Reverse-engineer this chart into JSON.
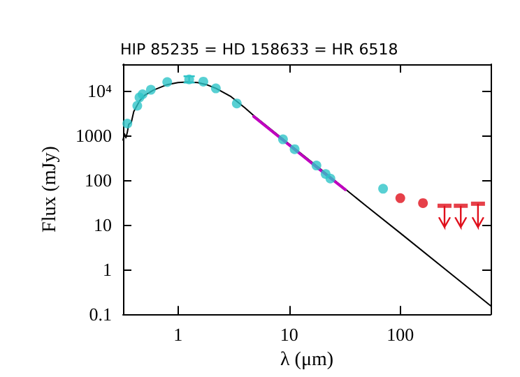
{
  "chart_data": {
    "type": "scatter",
    "title": "HIP 85235 = HD 158633 = HR 6518",
    "xlabel": "λ (μm)",
    "ylabel": "Flux (mJy)",
    "log": "xy",
    "xlim": [
      0.32,
      650
    ],
    "ylim": [
      0.1,
      40000
    ],
    "xticks": [
      1,
      10,
      100
    ],
    "yticks": [
      0.1,
      1,
      10,
      100,
      1000,
      {
        "value": 10000,
        "label": "10⁴"
      }
    ],
    "series": [
      {
        "type": "line",
        "color": "#000000",
        "marker": "none",
        "line_style": "solid",
        "x": [
          0.32,
          0.33,
          0.34,
          0.35,
          0.36,
          0.38,
          0.4,
          0.45,
          0.5,
          0.6,
          0.8,
          1.0,
          1.2,
          1.5,
          1.8,
          2.2,
          3,
          4,
          5,
          10,
          20,
          50,
          100,
          300,
          650
        ],
        "values": [
          800,
          1100,
          900,
          1200,
          1800,
          2000,
          3500,
          6000,
          8000,
          10500,
          14000,
          15500,
          16000,
          15500,
          14000,
          11500,
          7500,
          4200,
          2600,
          650,
          165,
          26,
          6.6,
          0.73,
          0.155
        ]
      },
      {
        "type": "line",
        "color": "#c000c0",
        "marker": "none",
        "line_style": "solid",
        "x": [
          4.8,
          10,
          20,
          32
        ],
        "values": [
          2700,
          620,
          155,
          62
        ]
      },
      {
        "color": "#2ec4c8",
        "marker": "circle",
        "x": [
          0.35,
          0.43,
          0.45,
          0.48,
          0.57,
          0.8,
          1.26,
          1.69,
          2.19,
          3.38,
          8.8,
          11.2,
          17.6,
          21.3,
          23.5,
          70
        ],
        "values": [
          1870,
          4700,
          7200,
          8500,
          10700,
          16000,
          18300,
          16300,
          11500,
          5300,
          830,
          500,
          215,
          139,
          110,
          65
        ],
        "errors": [
          null,
          null,
          null,
          null,
          null,
          null,
          [
            15500,
            21500
          ],
          null,
          null,
          null,
          null,
          null,
          null,
          null,
          null,
          null
        ]
      },
      {
        "color": "#e0101c",
        "marker": "circle",
        "x": [
          100,
          160
        ],
        "values": [
          40,
          31
        ]
      },
      {
        "color": "#e0101c",
        "marker": "square",
        "x": [
          250,
          350,
          500
        ],
        "values": [
          27,
          27,
          30
        ],
        "errors": [
          [
            9,
            27
          ],
          [
            9,
            27
          ],
          [
            9,
            30
          ]
        ]
      }
    ]
  }
}
